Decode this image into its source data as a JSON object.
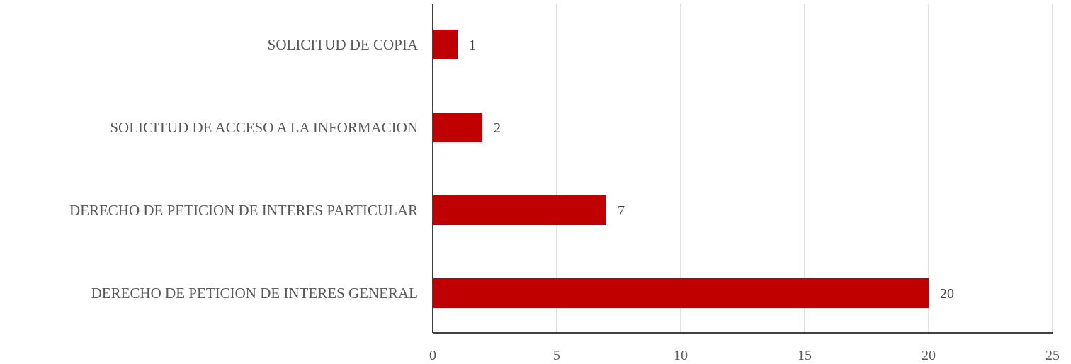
{
  "chart_data": {
    "type": "bar",
    "orientation": "horizontal",
    "title": "",
    "xlabel": "",
    "ylabel": "",
    "categories": [
      "SOLICITUD DE COPIA",
      "SOLICITUD DE ACCESO A LA INFORMACION",
      "DERECHO DE PETICION DE INTERES PARTICULAR",
      "DERECHO DE PETICION DE INTERES GENERAL"
    ],
    "values": [
      1,
      2,
      7,
      20
    ],
    "xlim": [
      0,
      25
    ],
    "x_ticks": [
      "0",
      "5",
      "10",
      "15",
      "20",
      "25"
    ],
    "grid": "vertical",
    "legend": "none",
    "bar_color": "#c00000",
    "data_labels": true
  }
}
